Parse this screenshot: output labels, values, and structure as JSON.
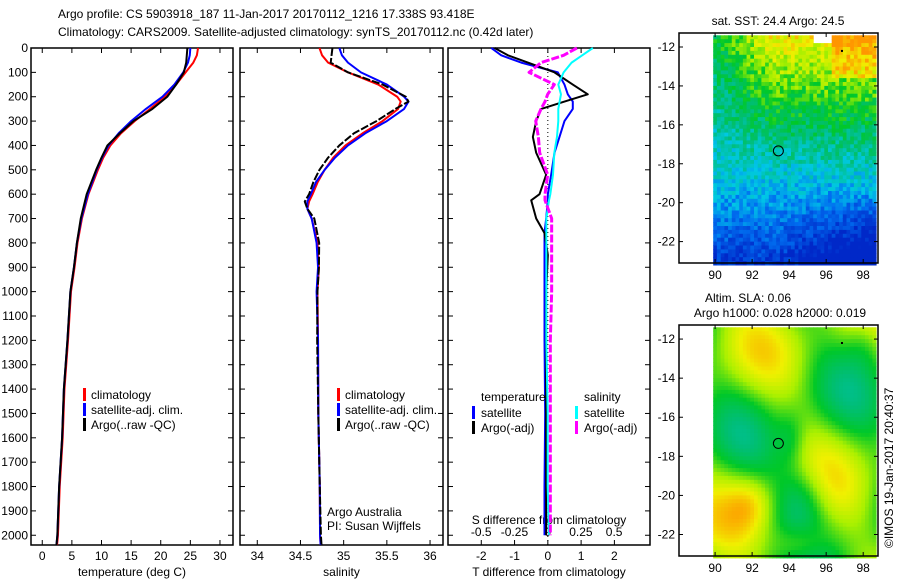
{
  "title": {
    "line1": "Argo profile: CS 5903918_187 11-Jan-2017 20170112_1216 17.338S 93.418E",
    "line2": "Climatology: CARS2009. Satellite-adjusted climatology: synTS_20170112.nc (0.42d later)"
  },
  "colors": {
    "climatology": "#ff0000",
    "satellite": "#0000ff",
    "argo": "#000000",
    "s_satellite": "#00ffff",
    "s_argo": "#ff00ff"
  },
  "chart_data": [
    {
      "type": "line",
      "id": "temperature",
      "xlabel": "temperature (deg C)",
      "ylabel": "",
      "xlim": [
        -1.9,
        32.2
      ],
      "ylim": [
        2040,
        0
      ],
      "xticks": [
        0,
        5,
        10,
        15,
        20,
        25,
        30
      ],
      "yticks": [
        0,
        100,
        200,
        300,
        400,
        500,
        600,
        700,
        800,
        900,
        1000,
        1100,
        1200,
        1300,
        1400,
        1500,
        1600,
        1700,
        1800,
        1900,
        2000
      ],
      "legend": {
        "position": "bottom-center",
        "entries": [
          "climatology",
          "satellite-adj. clim.",
          "Argo(..raw -QC)"
        ]
      },
      "depth": [
        0,
        30,
        60,
        100,
        150,
        200,
        250,
        300,
        350,
        400,
        450,
        500,
        600,
        700,
        800,
        900,
        1000,
        1200,
        1400,
        1600,
        1800,
        2000,
        2040
      ],
      "series": [
        {
          "name": "climatology",
          "color": "#ff0000",
          "values": [
            26.3,
            26.1,
            25.5,
            24.2,
            22.6,
            20.7,
            18.2,
            15.6,
            13.3,
            11.5,
            10.3,
            9.4,
            7.8,
            6.7,
            6.0,
            5.4,
            4.9,
            4.3,
            3.8,
            3.4,
            3.0,
            2.6,
            2.55
          ]
        },
        {
          "name": "satellite-adj. clim.",
          "color": "#0000ff",
          "values": [
            25.0,
            24.9,
            24.6,
            23.8,
            22.3,
            20.3,
            17.5,
            15.0,
            12.9,
            11.2,
            10.1,
            9.2,
            7.7,
            6.6,
            5.9,
            5.3,
            4.8,
            4.2,
            3.7,
            3.3,
            2.9,
            2.5,
            2.45
          ]
        },
        {
          "name": "Argo(..raw -QC)",
          "color": "#000000",
          "values": [
            24.5,
            24.4,
            24.3,
            23.9,
            22.6,
            21.1,
            18.6,
            15.4,
            13.1,
            11.0,
            10.0,
            9.1,
            7.5,
            6.5,
            5.9,
            5.3,
            4.8,
            4.2,
            3.7,
            3.3,
            2.9,
            2.5,
            2.45
          ]
        }
      ]
    },
    {
      "type": "line",
      "id": "salinity",
      "xlabel": "salinity",
      "xlim": [
        33.8,
        36.15
      ],
      "ylim": [
        2040,
        0
      ],
      "xticks": [
        34,
        34.5,
        35,
        35.5,
        36
      ],
      "legend": {
        "position": "bottom-right",
        "entries": [
          "climatology",
          "satellite-adj. clim.",
          "Argo(..raw -QC)"
        ]
      },
      "annotation": {
        "line1": "Argo Australia",
        "line2": "PI: Susan Wijffels"
      },
      "depth": [
        0,
        30,
        60,
        100,
        150,
        200,
        220,
        250,
        300,
        350,
        400,
        450,
        500,
        550,
        600,
        630,
        660,
        700,
        800,
        900,
        1000,
        1200,
        1500,
        1800,
        2000,
        2040
      ],
      "series": [
        {
          "name": "climatology",
          "color": "#ff0000",
          "values": [
            34.72,
            34.75,
            34.82,
            35.05,
            35.4,
            35.62,
            35.66,
            35.63,
            35.45,
            35.22,
            35.02,
            34.88,
            34.78,
            34.7,
            34.64,
            34.6,
            34.58,
            34.63,
            34.7,
            34.71,
            34.7,
            34.7,
            34.71,
            34.72,
            34.73,
            34.73
          ]
        },
        {
          "name": "satellite-adj. clim.",
          "color": "#0000ff",
          "values": [
            34.95,
            34.98,
            35.05,
            35.2,
            35.5,
            35.7,
            35.75,
            35.7,
            35.5,
            35.25,
            35.05,
            34.9,
            34.78,
            34.68,
            34.62,
            34.58,
            34.58,
            34.63,
            34.69,
            34.7,
            34.69,
            34.7,
            34.71,
            34.72,
            34.73,
            34.73
          ]
        },
        {
          "name": "Argo(..raw -QC)",
          "color": "#000000",
          "values": [
            34.87,
            34.86,
            34.85,
            35.05,
            35.45,
            35.72,
            35.75,
            35.6,
            35.38,
            35.12,
            34.95,
            34.82,
            34.72,
            34.65,
            34.6,
            34.55,
            34.58,
            34.66,
            34.72,
            34.71,
            34.7,
            34.69,
            34.71,
            34.72,
            34.74,
            34.74
          ]
        }
      ]
    },
    {
      "type": "line",
      "id": "difference",
      "xlabel": "T difference from climatology",
      "xlabel_top": "S difference from climatology",
      "xlim": [
        -3.0,
        3.07
      ],
      "xticks": [
        -2,
        -1,
        0,
        1,
        2
      ],
      "s_xlim": [
        -0.75,
        0.77
      ],
      "s_xticks": [
        -0.5,
        -0.25,
        0,
        0.25,
        0.5
      ],
      "ylim": [
        2040,
        0
      ],
      "legend": {
        "position": "bottom-center",
        "headers": [
          "temperature",
          "salinity"
        ],
        "entries": [
          "satellite",
          "Argo(-adj)",
          "satellite",
          "Argo(-adj)"
        ]
      },
      "depth": [
        0,
        30,
        60,
        100,
        150,
        190,
        220,
        250,
        300,
        365,
        430,
        520,
        600,
        625,
        700,
        760,
        850,
        1000,
        1200,
        1500,
        1800,
        2000
      ],
      "series": [
        {
          "name": "T satellite",
          "color": "#0000ff",
          "values": [
            -1.7,
            -1.4,
            -0.8,
            0.3,
            0.5,
            0.6,
            0.75,
            0.75,
            0.5,
            0.35,
            0.2,
            0.1,
            0.0,
            0.0,
            -0.05,
            -0.1,
            -0.1,
            -0.1,
            -0.1,
            -0.08,
            -0.1,
            -0.1
          ]
        },
        {
          "name": "T Argo(-adj)",
          "color": "#000000",
          "values": [
            -1.6,
            -1.2,
            -0.6,
            0.2,
            0.75,
            1.2,
            0.5,
            -0.2,
            -0.35,
            -0.45,
            -0.35,
            -0.05,
            -0.25,
            -0.5,
            -0.35,
            -0.1,
            0.0,
            -0.05,
            -0.05,
            -0.05,
            -0.05,
            -0.05
          ]
        },
        {
          "name": "S satellite",
          "color": "#00ffff",
          "values": [
            0.34,
            0.26,
            0.18,
            0.12,
            0.08,
            0.1,
            0.09,
            0.08,
            0.08,
            0.07,
            0.05,
            0.04,
            0.02,
            0.01,
            -0.01,
            -0.01,
            -0.01,
            -0.01,
            -0.01,
            0.0,
            0.0,
            0.01
          ]
        },
        {
          "name": "S Argo(-adj)",
          "color": "#ff00ff",
          "values": [
            0.22,
            0.12,
            -0.05,
            -0.14,
            0.05,
            0.0,
            -0.02,
            -0.05,
            -0.09,
            -0.07,
            -0.06,
            0.0,
            -0.02,
            -0.02,
            0.03,
            0.03,
            0.03,
            0.03,
            0.02,
            0.02,
            0.02,
            0.02
          ]
        }
      ]
    },
    {
      "type": "heatmap",
      "id": "sst-map",
      "title": "sat. SST: 24.4  Argo: 24.5",
      "xlim": [
        88.05,
        98.8
      ],
      "ylim": [
        -23.1,
        -11.28
      ],
      "xticks": [
        90,
        92,
        94,
        96,
        98
      ],
      "yticks": [
        -12,
        -14,
        -16,
        -18,
        -20,
        -22
      ],
      "marker": {
        "lon": 93.418,
        "lat": -17.338
      }
    },
    {
      "type": "heatmap",
      "id": "sla-map",
      "title_line1": "Altim. SLA: 0.06",
      "title_line2": "Argo h1000: 0.028 h2000: 0.019",
      "xlim": [
        88.05,
        98.8
      ],
      "ylim": [
        -23.1,
        -11.28
      ],
      "xticks": [
        90,
        92,
        94,
        96,
        98
      ],
      "yticks": [
        -12,
        -14,
        -16,
        -18,
        -20,
        -22
      ],
      "marker": {
        "lon": 93.418,
        "lat": -17.338
      }
    }
  ],
  "credit": "©IMOS 19-Jan-2017 20:40:37"
}
